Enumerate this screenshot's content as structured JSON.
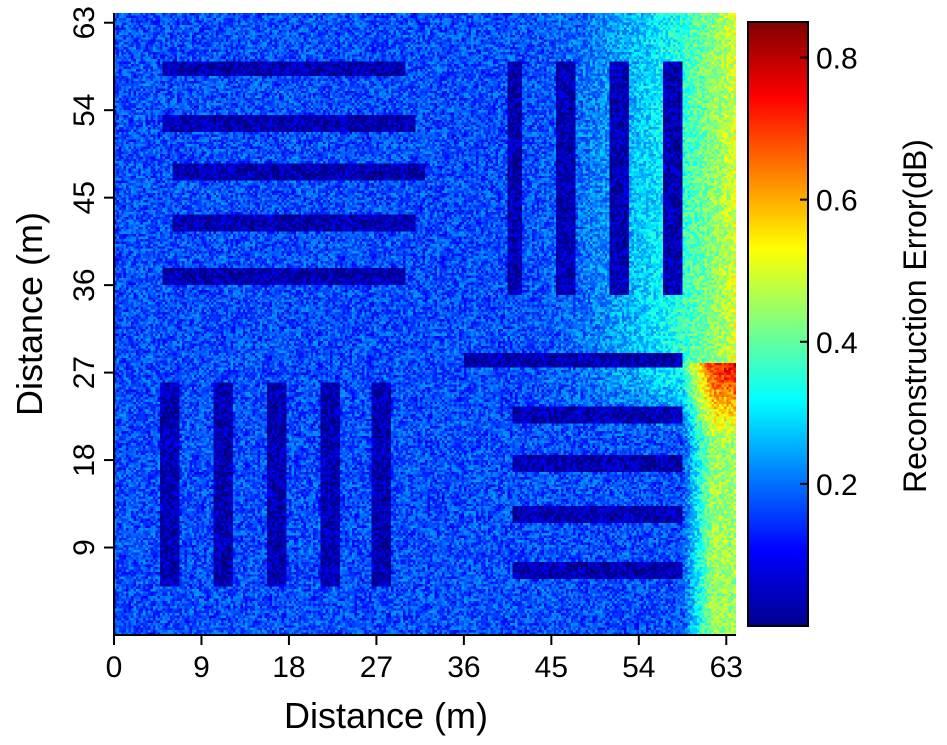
{
  "chart_data": {
    "type": "heatmap",
    "title": "",
    "xlabel": "Distance (m)",
    "ylabel": "Distance (m)",
    "xlim": [
      0,
      64
    ],
    "ylim": [
      0,
      64
    ],
    "x_ticks": [
      0,
      9,
      18,
      27,
      36,
      45,
      54,
      63
    ],
    "y_ticks": [
      9,
      18,
      27,
      36,
      45,
      54,
      63
    ],
    "grid": false,
    "colormap": "jet",
    "colorbar": {
      "label": "Reconstruction Error(dB)",
      "range": [
        0,
        0.85
      ],
      "ticks": [
        0.2,
        0.4,
        0.6,
        0.8
      ],
      "tick_labels": [
        "0.2",
        "0.4",
        "0.6",
        "0.8"
      ]
    },
    "background_level": 0.17,
    "noise_amplitude": 0.07,
    "stripe_level": 0.04,
    "right_edge_gradient": {
      "x_start": 40,
      "x_end": 64,
      "y_start": 28,
      "y_end": 64,
      "max_level": 0.5
    },
    "stripes": [
      {
        "orientation": "horizontal",
        "x": [
          5,
          30
        ],
        "y": [
          57.5,
          59.0
        ]
      },
      {
        "orientation": "horizontal",
        "x": [
          5,
          31
        ],
        "y": [
          51.8,
          53.5
        ]
      },
      {
        "orientation": "horizontal",
        "x": [
          6,
          32
        ],
        "y": [
          46.8,
          48.5
        ]
      },
      {
        "orientation": "horizontal",
        "x": [
          6,
          31
        ],
        "y": [
          41.5,
          43.2
        ]
      },
      {
        "orientation": "horizontal",
        "x": [
          5,
          30
        ],
        "y": [
          36.0,
          37.7
        ]
      },
      {
        "orientation": "vertical",
        "x": [
          40.5,
          42.0
        ],
        "y": [
          35,
          59
        ]
      },
      {
        "orientation": "vertical",
        "x": [
          45.5,
          47.5
        ],
        "y": [
          35,
          59
        ]
      },
      {
        "orientation": "vertical",
        "x": [
          51.0,
          53.0
        ],
        "y": [
          35,
          59
        ]
      },
      {
        "orientation": "vertical",
        "x": [
          56.5,
          58.5
        ],
        "y": [
          35,
          59
        ]
      },
      {
        "orientation": "horizontal",
        "x": [
          36,
          58.5
        ],
        "y": [
          27.5,
          29.0
        ]
      },
      {
        "orientation": "horizontal",
        "x": [
          41,
          58.5
        ],
        "y": [
          21.8,
          23.5
        ]
      },
      {
        "orientation": "horizontal",
        "x": [
          41,
          58.5
        ],
        "y": [
          16.8,
          18.5
        ]
      },
      {
        "orientation": "horizontal",
        "x": [
          41,
          58.5
        ],
        "y": [
          11.5,
          13.2
        ]
      },
      {
        "orientation": "horizontal",
        "x": [
          41,
          58.5
        ],
        "y": [
          5.8,
          7.5
        ]
      },
      {
        "orientation": "vertical",
        "x": [
          4.8,
          6.8
        ],
        "y": [
          5,
          26
        ]
      },
      {
        "orientation": "vertical",
        "x": [
          10.2,
          12.2
        ],
        "y": [
          5,
          26
        ]
      },
      {
        "orientation": "vertical",
        "x": [
          15.8,
          17.8
        ],
        "y": [
          5,
          26
        ]
      },
      {
        "orientation": "vertical",
        "x": [
          21.2,
          23.2
        ],
        "y": [
          5,
          26
        ]
      },
      {
        "orientation": "vertical",
        "x": [
          26.6,
          28.6
        ],
        "y": [
          5,
          26
        ]
      }
    ]
  }
}
